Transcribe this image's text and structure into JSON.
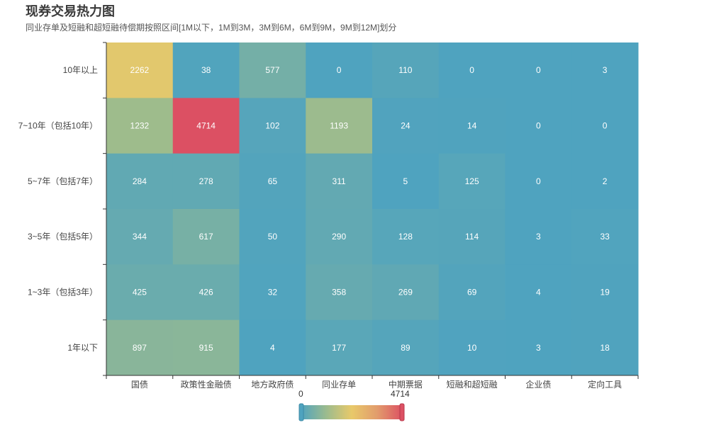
{
  "chart_data": {
    "type": "heatmap",
    "title": "现券交易热力图",
    "subtitle": "同业存单及短融和超短融待偿期按照区间[1M以下，1M到3M，3M到6M，6M到9M，9M到12M]划分",
    "x_categories": [
      "国债",
      "政策性金融债",
      "地方政府债",
      "同业存单",
      "中期票据",
      "短融和超短融",
      "企业债",
      "定向工具"
    ],
    "y_categories": [
      "10年以上",
      "7~10年（包括10年）",
      "5~7年（包括7年）",
      "3~5年（包括5年）",
      "1~3年（包括3年）",
      "1年以下"
    ],
    "values": [
      [
        2262,
        38,
        577,
        0,
        110,
        0,
        0,
        3
      ],
      [
        1232,
        4714,
        102,
        1193,
        24,
        14,
        0,
        0
      ],
      [
        284,
        278,
        65,
        311,
        5,
        125,
        0,
        2
      ],
      [
        344,
        617,
        50,
        290,
        128,
        114,
        3,
        33
      ],
      [
        425,
        426,
        32,
        358,
        269,
        69,
        4,
        19
      ],
      [
        897,
        915,
        4,
        177,
        89,
        10,
        3,
        18
      ]
    ],
    "visual_map": {
      "min": 0,
      "max": 4714,
      "min_label": "0",
      "max_label": "4714",
      "colors": [
        "#4fa3bf",
        "#9bbb8e",
        "#e8c96a",
        "#e29c6c",
        "#dc5063"
      ]
    }
  }
}
